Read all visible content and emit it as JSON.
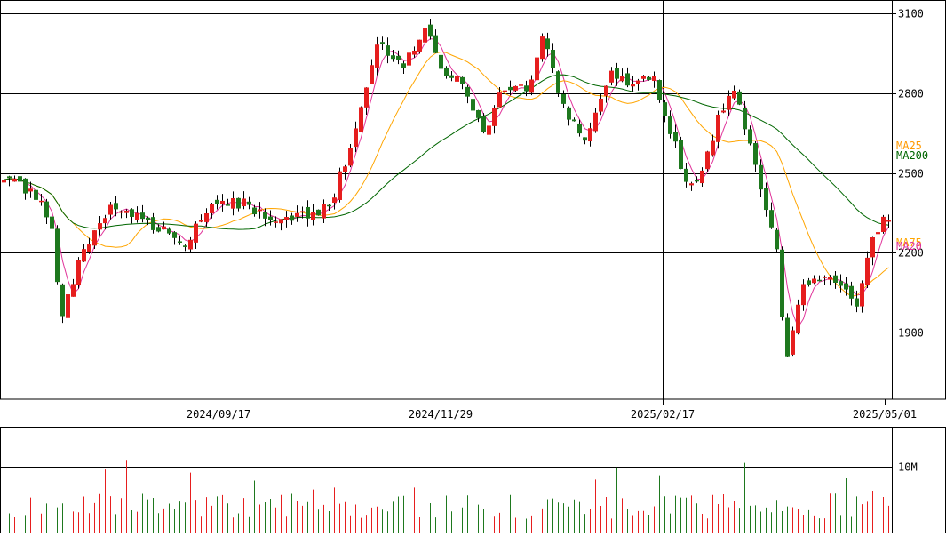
{
  "chart_data": {
    "type": "candlestick",
    "price_panel": {
      "y_ticks": [
        1900,
        2200,
        2500,
        2800,
        3100
      ],
      "y_tick_labels": [
        "1900",
        "2200",
        "2500",
        "2800",
        "3100"
      ],
      "ylim": [
        1650,
        3150
      ]
    },
    "date_labels": [
      "2024/09/17",
      "2024/11/29",
      "2025/02/17",
      "2025/05/01"
    ],
    "moving_averages": [
      {
        "name": "MA25",
        "color": "#ff9900",
        "last_value": 2570
      },
      {
        "name": "MA200",
        "color": "#006600",
        "last_value": 2530
      },
      {
        "name": "MA75",
        "color": "#ffa500",
        "last_value": 2205
      },
      {
        "name": "MA20",
        "color": "#e0349a",
        "last_value": 2190
      }
    ],
    "colors": {
      "up": "#e61e1e",
      "down": "#1e781e",
      "grid": "#000000"
    },
    "volume_panel": {
      "y_ticks": [
        10000000
      ],
      "y_tick_labels": [
        "10M"
      ],
      "ylim": [
        0,
        16000000
      ]
    },
    "series_summary": {
      "start_price": 2480,
      "period_high": 3110,
      "period_low": 1720,
      "end_price": 2335
    }
  }
}
